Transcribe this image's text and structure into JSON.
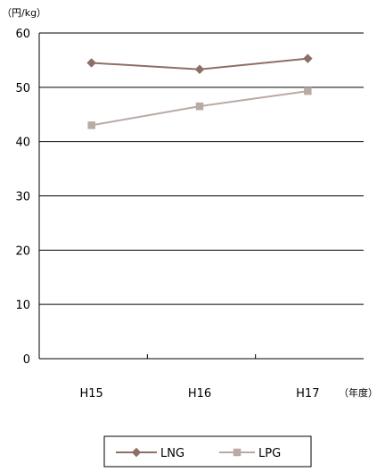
{
  "chart_data": {
    "type": "line",
    "unit_label": "（円/kg）",
    "x_unit_label": "（年度）",
    "categories": [
      "H15",
      "H16",
      "H17"
    ],
    "series": [
      {
        "name": "LNG",
        "values": [
          54.5,
          53.3,
          55.3
        ],
        "color": "#8d6e69",
        "marker": "diamond"
      },
      {
        "name": "LPG",
        "values": [
          43.0,
          46.5,
          49.3
        ],
        "color": "#b9aaa5",
        "marker": "square"
      }
    ],
    "y_ticks": [
      0,
      10,
      20,
      30,
      40,
      50,
      60
    ],
    "ylim": [
      0,
      60
    ],
    "grid": true,
    "legend_position": "bottom"
  }
}
